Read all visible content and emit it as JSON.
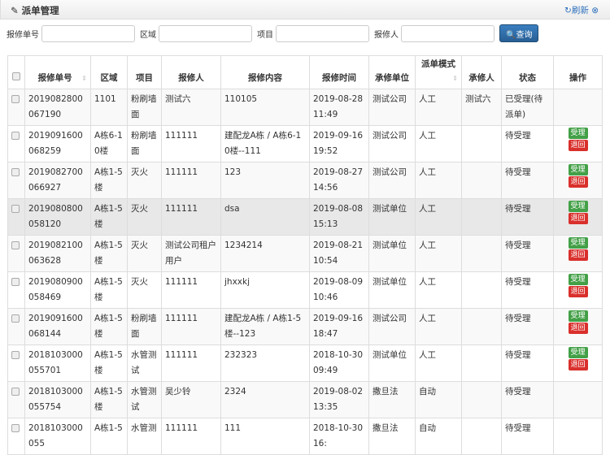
{
  "header": {
    "title": "派单管理",
    "refresh": "刷新"
  },
  "search": {
    "fields": [
      "报修单号",
      "区域",
      "项目",
      "报修人"
    ],
    "button": "查询"
  },
  "columns": [
    "报修单号",
    "区域",
    "项目",
    "报修人",
    "报修内容",
    "报修时间",
    "承修单位",
    "派单模式",
    "承修人",
    "状态",
    "操作"
  ],
  "actions": {
    "accept": "受理",
    "return": "退回"
  },
  "rows": [
    {
      "id": "2019082800067190",
      "area": "1101",
      "project": "粉刷墙面",
      "reporter": "测试六",
      "content": "110105",
      "time": "2019-08-28 11:49",
      "unit": "测试公司",
      "mode": "人工",
      "repairer": "测试六",
      "status": "已受理(待派单)",
      "ops": false
    },
    {
      "id": "2019091600068259",
      "area": "A栋6-10楼",
      "project": "粉刷墙面",
      "reporter": "111111",
      "content": "建配龙A栋 / A栋6-10楼--111",
      "time": "2019-09-16 19:52",
      "unit": "测试公司",
      "mode": "人工",
      "repairer": "",
      "status": "待受理",
      "ops": true
    },
    {
      "id": "2019082700066927",
      "area": "A栋1-5楼",
      "project": "灭火",
      "reporter": "111111",
      "content": "123",
      "time": "2019-08-27 14:56",
      "unit": "测试公司",
      "mode": "人工",
      "repairer": "",
      "status": "待受理",
      "ops": true
    },
    {
      "id": "2019080800058120",
      "area": "A栋1-5楼",
      "project": "灭火",
      "reporter": "111111",
      "content": "dsa",
      "time": "2019-08-08 15:13",
      "unit": "测试单位",
      "mode": "人工",
      "repairer": "",
      "status": "待受理",
      "ops": true
    },
    {
      "id": "2019082100063628",
      "area": "A栋1-5楼",
      "project": "灭火",
      "reporter": "测试公司租户用户",
      "content": "1234214",
      "time": "2019-08-21 10:54",
      "unit": "测试单位",
      "mode": "人工",
      "repairer": "",
      "status": "待受理",
      "ops": true
    },
    {
      "id": "2019080900058469",
      "area": "A栋1-5楼",
      "project": "灭火",
      "reporter": "111111",
      "content": "jhxxkj",
      "time": "2019-08-09 10:46",
      "unit": "测试单位",
      "mode": "人工",
      "repairer": "",
      "status": "待受理",
      "ops": true
    },
    {
      "id": "2019091600068144",
      "area": "A栋1-5楼",
      "project": "粉刷墙面",
      "reporter": "111111",
      "content": "建配龙A栋 / A栋1-5楼--123",
      "time": "2019-09-16 18:47",
      "unit": "测试公司",
      "mode": "人工",
      "repairer": "",
      "status": "待受理",
      "ops": true
    },
    {
      "id": "2018103000055701",
      "area": "A栋1-5楼",
      "project": "水管测试",
      "reporter": "111111",
      "content": "232323",
      "time": "2018-10-30 09:49",
      "unit": "测试单位",
      "mode": "人工",
      "repairer": "",
      "status": "待受理",
      "ops": true
    },
    {
      "id": "2018103000055754",
      "area": "A栋1-5楼",
      "project": "水管测试",
      "reporter": "吴少铃",
      "content": "2324",
      "time": "2019-08-02 13:35",
      "unit": "撒旦法",
      "mode": "自动",
      "repairer": "",
      "status": "待受理",
      "ops": false
    },
    {
      "id": "2018103000055",
      "area": "A栋1-5",
      "project": "水管测",
      "reporter": "111111",
      "content": "111",
      "time": "2018-10-30 16:",
      "unit": "撒旦法",
      "mode": "自动",
      "repairer": "",
      "status": "待受理",
      "ops": false
    }
  ]
}
